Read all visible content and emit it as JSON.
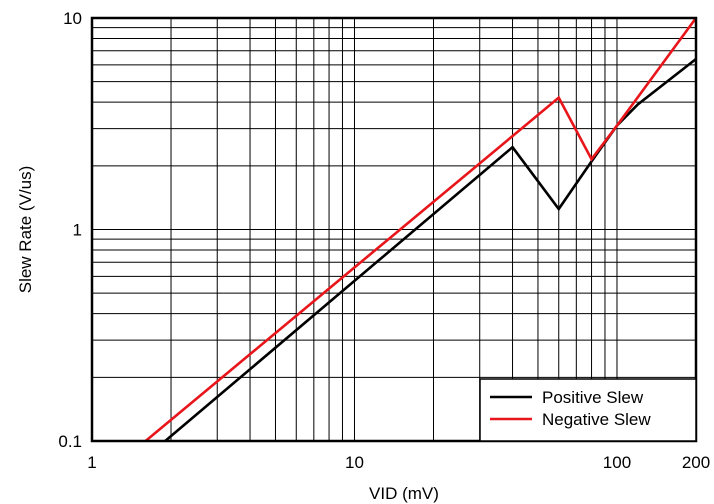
{
  "chart_data": {
    "type": "line",
    "title": "",
    "xlabel": "VID (mV)",
    "ylabel": "Slew Rate (V/us)",
    "xscale": "log",
    "yscale": "log",
    "xlim": [
      1,
      200
    ],
    "ylim": [
      0.1,
      10
    ],
    "grid": true,
    "legend_position": "bottom-right",
    "x_tick_labels": [
      {
        "value": 1,
        "label": "1"
      },
      {
        "value": 10,
        "label": "10"
      },
      {
        "value": 100,
        "label": "100"
      },
      {
        "value": 200,
        "label": "200"
      }
    ],
    "y_tick_labels": [
      {
        "value": 0.1,
        "label": "0.1"
      },
      {
        "value": 1,
        "label": "1"
      },
      {
        "value": 10,
        "label": "10"
      }
    ],
    "series": [
      {
        "name": "Positive Slew",
        "color": "#000000",
        "points": [
          [
            1.9,
            0.1
          ],
          [
            40,
            2.45
          ],
          [
            60,
            1.25
          ],
          [
            80,
            2.1
          ],
          [
            100,
            3.1
          ],
          [
            120,
            3.9
          ],
          [
            200,
            6.4
          ]
        ]
      },
      {
        "name": "Negative Slew",
        "color": "#e8151b",
        "points": [
          [
            1.6,
            0.1
          ],
          [
            60,
            4.2
          ],
          [
            80,
            2.15
          ],
          [
            100,
            3.1
          ],
          [
            200,
            10
          ]
        ]
      }
    ]
  }
}
